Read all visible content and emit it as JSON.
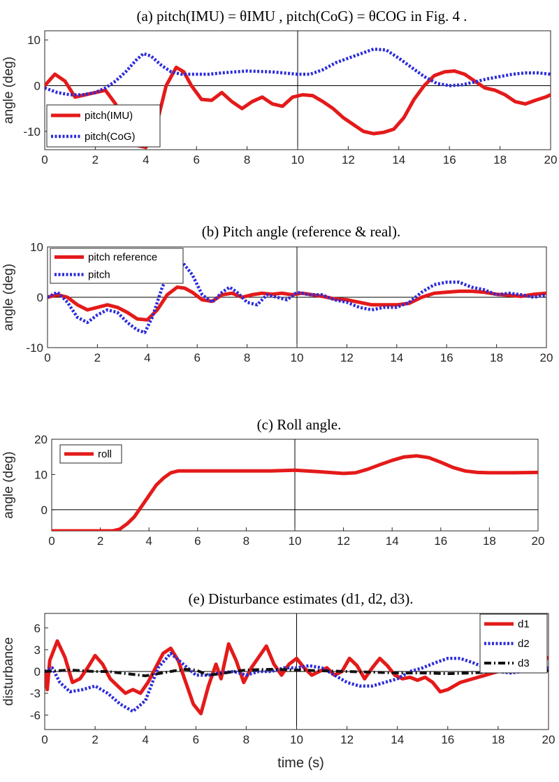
{
  "figure": {
    "xlabel": "time (s)"
  },
  "colors": {
    "red": "#e41a1a",
    "blue": "#2b2bdc",
    "black": "#111111",
    "axis": "#262626"
  },
  "chart_data": [
    {
      "type": "line",
      "title": "(a) pitch(IMU) = θIMU , pitch(CoG) = θCOG  in Fig. 4 .",
      "ylabel": "angle (deg)",
      "xlim": [
        0,
        20
      ],
      "ylim": [
        -14,
        12
      ],
      "xticks": [
        0,
        2,
        4,
        6,
        8,
        10,
        12,
        14,
        16,
        18,
        20
      ],
      "yticks": [
        -10,
        0,
        10
      ],
      "ref_h": 0,
      "ref_v": 10,
      "legend": "bottom-left",
      "series": [
        {
          "name": "pitch(IMU)",
          "style": "solid",
          "color": "red",
          "x": [
            0,
            0.4,
            0.8,
            1.2,
            1.6,
            2.0,
            2.4,
            2.8,
            3.2,
            3.6,
            4.0,
            4.4,
            4.8,
            5.2,
            5.5,
            5.8,
            6.2,
            6.6,
            7.0,
            7.4,
            7.8,
            8.2,
            8.6,
            9.0,
            9.4,
            9.8,
            10.2,
            10.6,
            11.0,
            11.4,
            11.8,
            12.2,
            12.6,
            13.0,
            13.4,
            13.8,
            14.2,
            14.6,
            15.0,
            15.4,
            15.8,
            16.2,
            16.6,
            17.0,
            17.4,
            17.8,
            18.2,
            18.6,
            19.0,
            19.4,
            19.8,
            20.0
          ],
          "y": [
            0,
            2.5,
            1.0,
            -2.5,
            -2.0,
            -1.5,
            -1.0,
            -4.0,
            -9.0,
            -13.0,
            -13.5,
            -9.0,
            0.0,
            4.0,
            3.0,
            0.0,
            -3.0,
            -3.2,
            -1.5,
            -3.5,
            -5.0,
            -3.5,
            -2.5,
            -4.0,
            -4.5,
            -2.5,
            -2.0,
            -2.2,
            -3.5,
            -5.0,
            -7.0,
            -8.5,
            -10.0,
            -10.5,
            -10.2,
            -9.5,
            -7.0,
            -3.0,
            0.0,
            2.2,
            3.0,
            3.2,
            2.5,
            1.0,
            -0.5,
            -1.0,
            -2.0,
            -3.5,
            -4.0,
            -3.2,
            -2.5,
            -2.0
          ]
        },
        {
          "name": "pitch(CoG)",
          "style": "dotted",
          "color": "blue",
          "x": [
            0,
            0.5,
            1.0,
            1.5,
            2.0,
            2.4,
            2.8,
            3.2,
            3.6,
            3.9,
            4.2,
            4.6,
            5.0,
            5.4,
            5.8,
            6.5,
            7.0,
            8.0,
            9.0,
            10.0,
            10.5,
            11.0,
            11.5,
            12.0,
            12.5,
            13.0,
            13.5,
            14.0,
            14.5,
            15.0,
            15.5,
            16.0,
            16.5,
            17.0,
            17.5,
            18.0,
            18.5,
            19.0,
            19.5,
            20.0
          ],
          "y": [
            -0.5,
            -1.5,
            -2.0,
            -2.0,
            -1.5,
            -0.5,
            1.0,
            3.0,
            5.5,
            7.0,
            6.5,
            4.5,
            3.0,
            2.5,
            2.5,
            2.5,
            2.8,
            3.2,
            3.0,
            2.5,
            2.5,
            3.5,
            5.0,
            6.0,
            7.0,
            8.0,
            7.8,
            6.0,
            4.0,
            2.0,
            0.5,
            0.0,
            0.2,
            0.8,
            1.5,
            2.0,
            2.5,
            2.8,
            2.8,
            2.5
          ]
        }
      ]
    },
    {
      "type": "line",
      "title": "(b) Pitch angle (reference & real).",
      "ylabel": "angle (deg)",
      "xlim": [
        0,
        20
      ],
      "ylim": [
        -10,
        10
      ],
      "xticks": [
        0,
        2,
        4,
        6,
        8,
        10,
        12,
        14,
        16,
        18,
        20
      ],
      "yticks": [
        -10,
        0,
        10
      ],
      "ref_h": 0,
      "ref_v": 10,
      "legend": "top-left",
      "series": [
        {
          "name": "pitch reference",
          "style": "solid",
          "color": "red",
          "x": [
            0,
            0.4,
            0.8,
            1.2,
            1.6,
            2.0,
            2.4,
            2.8,
            3.2,
            3.6,
            4.0,
            4.4,
            4.8,
            5.2,
            5.5,
            5.8,
            6.2,
            6.6,
            7.0,
            7.4,
            7.8,
            8.2,
            8.6,
            9.0,
            9.4,
            9.8,
            10.2,
            10.6,
            11.0,
            11.5,
            12.0,
            12.5,
            13.0,
            13.5,
            14.0,
            14.5,
            15.0,
            15.5,
            16.0,
            16.5,
            17.0,
            17.5,
            18.0,
            18.5,
            19.0,
            19.5,
            20.0
          ],
          "y": [
            0,
            0.5,
            0,
            -1.5,
            -2.5,
            -2.0,
            -1.5,
            -2.0,
            -3.0,
            -4.3,
            -4.5,
            -2.5,
            0.5,
            2.0,
            1.8,
            1.0,
            -0.5,
            -0.8,
            0.5,
            0.8,
            0.0,
            0.5,
            0.8,
            0.6,
            0.8,
            0.5,
            0.8,
            0.5,
            0.2,
            -0.3,
            -0.5,
            -1.0,
            -1.5,
            -1.5,
            -1.5,
            -1.2,
            0.0,
            0.8,
            1.0,
            1.2,
            1.2,
            1.0,
            0.6,
            0.4,
            0.2,
            0.6,
            0.8
          ]
        },
        {
          "name": "pitch",
          "style": "dotted",
          "color": "blue",
          "x": [
            0,
            0.4,
            0.8,
            1.2,
            1.6,
            2.0,
            2.4,
            2.8,
            3.2,
            3.6,
            3.9,
            4.2,
            4.6,
            5.0,
            5.4,
            5.8,
            6.2,
            6.6,
            7.0,
            7.3,
            7.6,
            8.0,
            8.4,
            8.8,
            9.2,
            9.6,
            10.0,
            10.5,
            11.0,
            11.5,
            12.0,
            12.5,
            13.0,
            13.5,
            14.0,
            14.5,
            15.0,
            15.5,
            16.0,
            16.5,
            17.0,
            17.5,
            18.0,
            18.5,
            19.0,
            19.5,
            20.0
          ],
          "y": [
            0,
            1.0,
            -1.0,
            -4.0,
            -5.0,
            -3.5,
            -2.5,
            -3.0,
            -5.0,
            -6.5,
            -7.0,
            -4.0,
            2.0,
            6.0,
            7.0,
            4.5,
            0.5,
            -1.0,
            1.0,
            2.0,
            1.0,
            -1.0,
            -1.5,
            0.5,
            0.0,
            -0.5,
            1.0,
            0.5,
            0.5,
            -0.5,
            -1.0,
            -2.0,
            -2.5,
            -2.0,
            -2.0,
            -1.0,
            1.0,
            2.5,
            3.0,
            3.0,
            2.0,
            1.5,
            0.5,
            0.8,
            0.5,
            0.0,
            0.5
          ]
        }
      ]
    },
    {
      "type": "line",
      "title": "(c) Roll angle.",
      "ylabel": "angle (deg)",
      "xlim": [
        0,
        20
      ],
      "ylim": [
        -6,
        20
      ],
      "xticks": [
        0,
        2,
        4,
        6,
        8,
        10,
        12,
        14,
        16,
        18,
        20
      ],
      "yticks": [
        0,
        10,
        20
      ],
      "ref_h": 0,
      "ref_v": 10,
      "legend": "top-left",
      "series": [
        {
          "name": "roll",
          "style": "solid",
          "color": "red",
          "x": [
            0,
            0.5,
            1.0,
            1.5,
            2.0,
            2.5,
            2.8,
            3.1,
            3.4,
            3.7,
            4.0,
            4.3,
            4.6,
            4.9,
            5.2,
            5.6,
            6.0,
            7.0,
            8.0,
            9.0,
            10.0,
            11.0,
            12.0,
            12.5,
            13.0,
            13.5,
            14.0,
            14.5,
            15.0,
            15.5,
            16.0,
            16.5,
            17.0,
            17.5,
            18.0,
            19.0,
            20.0
          ],
          "y": [
            -6,
            -6,
            -6,
            -6,
            -6,
            -6,
            -5.5,
            -4.0,
            -2.0,
            1.0,
            4.0,
            7.0,
            9.0,
            10.5,
            11.0,
            11.0,
            11.0,
            11.0,
            11.0,
            11.0,
            11.2,
            10.8,
            10.3,
            10.5,
            11.5,
            12.8,
            14.0,
            15.0,
            15.3,
            14.8,
            13.5,
            12.0,
            11.0,
            10.6,
            10.5,
            10.5,
            10.6
          ]
        }
      ]
    },
    {
      "type": "line",
      "title": "(e) Disturbance estimates (d1, d2, d3).",
      "ylabel": "disturbance",
      "xlabel": "time (s)",
      "xlim": [
        0,
        20
      ],
      "ylim": [
        -8,
        8
      ],
      "xticks": [
        0,
        2,
        4,
        6,
        8,
        10,
        12,
        14,
        16,
        18,
        20
      ],
      "yticks": [
        -6,
        -3,
        0,
        3,
        6
      ],
      "ref_h": 0,
      "ref_v": 10,
      "legend": "top-right",
      "series": [
        {
          "name": "d1",
          "style": "solid",
          "color": "red",
          "x": [
            0,
            0.1,
            0.2,
            0.5,
            0.8,
            1.1,
            1.4,
            1.7,
            2.0,
            2.3,
            2.6,
            2.9,
            3.2,
            3.5,
            3.8,
            4.1,
            4.4,
            4.7,
            5.0,
            5.3,
            5.6,
            5.9,
            6.2,
            6.5,
            6.8,
            7.0,
            7.3,
            7.6,
            7.9,
            8.2,
            8.5,
            8.8,
            9.1,
            9.4,
            9.7,
            10.0,
            10.3,
            10.6,
            10.9,
            11.2,
            11.5,
            11.8,
            12.1,
            12.4,
            12.7,
            13.0,
            13.3,
            13.6,
            13.9,
            14.2,
            14.5,
            14.8,
            15.1,
            15.4,
            15.7,
            16.0,
            16.5,
            17.0,
            17.5,
            18.0,
            18.5,
            19.0,
            19.5,
            19.8,
            20.0
          ],
          "y": [
            0,
            -2.5,
            1.5,
            4.2,
            2.0,
            -1.5,
            -1.0,
            0.5,
            2.2,
            1.0,
            -1.0,
            -2.0,
            -3.0,
            -2.5,
            -3.0,
            -1.5,
            0.5,
            2.5,
            3.2,
            1.5,
            -1.5,
            -4.5,
            -5.8,
            -2.0,
            1.0,
            -1.0,
            3.8,
            1.5,
            -1.5,
            0.5,
            2.0,
            3.5,
            1.0,
            -0.5,
            1.0,
            1.8,
            0.5,
            -0.5,
            0.0,
            0.5,
            -0.5,
            0.0,
            1.8,
            0.8,
            -1.0,
            0.5,
            1.8,
            0.8,
            -0.5,
            -1.0,
            -0.8,
            -1.2,
            -0.8,
            -1.5,
            -2.8,
            -2.5,
            -1.5,
            -1.0,
            -0.5,
            0.0,
            0.5,
            1.0,
            2.5,
            2.2,
            1.8
          ]
        },
        {
          "name": "d2",
          "style": "dotted",
          "color": "blue",
          "x": [
            0,
            0.3,
            0.6,
            1.0,
            1.5,
            2.0,
            2.5,
            3.0,
            3.5,
            4.0,
            4.5,
            5.0,
            5.5,
            6.0,
            6.5,
            7.0,
            7.5,
            8.0,
            8.5,
            9.0,
            9.5,
            10.0,
            10.5,
            11.0,
            11.5,
            12.0,
            12.5,
            13.0,
            13.5,
            14.0,
            14.5,
            15.0,
            15.5,
            16.0,
            16.5,
            17.0,
            17.5,
            18.0,
            18.5,
            19.0,
            19.5,
            20.0
          ],
          "y": [
            0,
            0.5,
            -1.5,
            -2.8,
            -2.5,
            -2.0,
            -3.0,
            -4.5,
            -5.5,
            -4.0,
            0.5,
            2.5,
            1.0,
            -0.5,
            -0.5,
            -0.2,
            0.0,
            -0.5,
            0.0,
            0.0,
            0.5,
            0.5,
            0.8,
            0.5,
            -0.5,
            -1.5,
            -2.0,
            -2.0,
            -1.5,
            -1.0,
            0.0,
            0.5,
            1.2,
            1.8,
            1.8,
            1.2,
            0.5,
            0.0,
            -0.2,
            0.0,
            0.5,
            0.5
          ]
        },
        {
          "name": "d3",
          "style": "dashdot",
          "color": "black",
          "x": [
            0,
            0.5,
            1.0,
            1.5,
            2.0,
            2.5,
            3.0,
            3.5,
            4.0,
            4.5,
            5.0,
            5.5,
            6.0,
            6.5,
            7.0,
            7.5,
            8.0,
            9.0,
            10.0,
            11.0,
            12.0,
            13.0,
            14.0,
            15.0,
            16.0,
            17.0,
            18.0,
            19.0,
            20.0
          ],
          "y": [
            0,
            0.1,
            0.2,
            0.1,
            0.0,
            0.0,
            -0.2,
            -0.4,
            -0.6,
            -0.3,
            0.0,
            0.3,
            0.2,
            -0.5,
            -0.3,
            0.0,
            0.2,
            0.3,
            0.2,
            0.1,
            0.0,
            -0.1,
            -0.2,
            -0.2,
            -0.3,
            -0.2,
            0.0,
            0.0,
            0.1
          ]
        }
      ]
    }
  ]
}
